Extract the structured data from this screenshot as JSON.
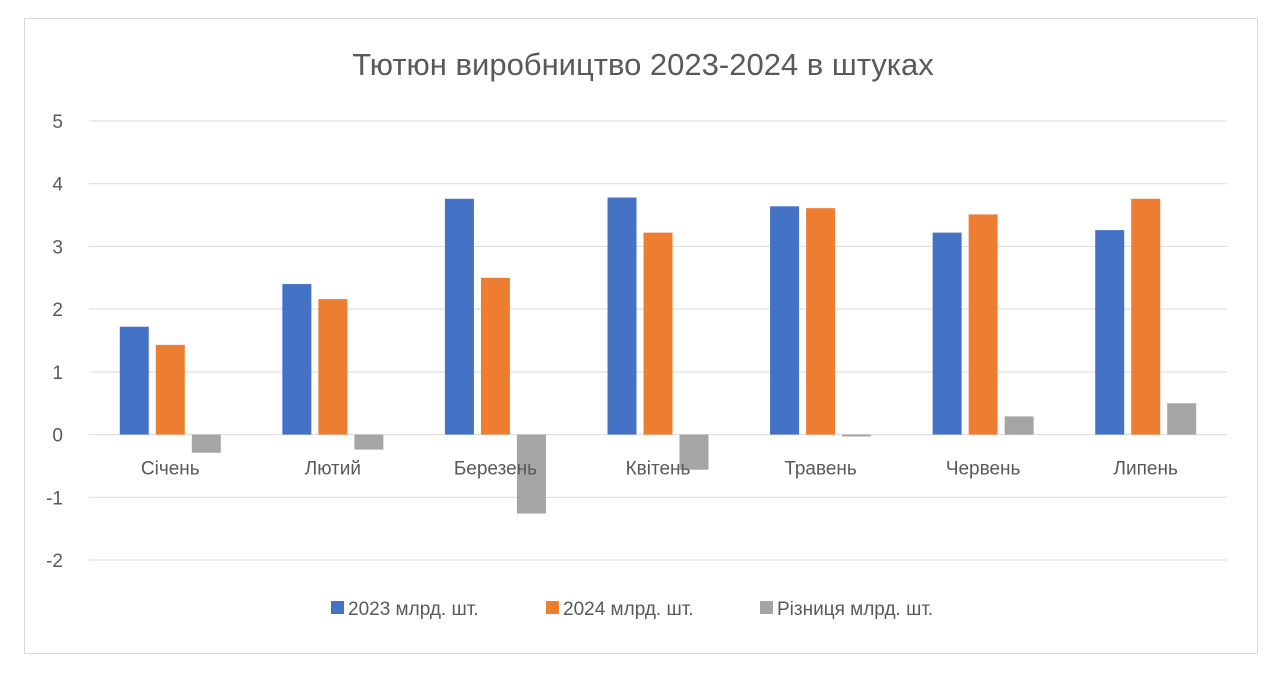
{
  "chart_data": {
    "type": "bar",
    "title": "Тютюн виробництво 2023-2024 в штуках",
    "xlabel": "",
    "ylabel": "",
    "categories": [
      "Січень",
      "Лютий",
      "Березень",
      "Квітень",
      "Травень",
      "Червень",
      "Липень"
    ],
    "series": [
      {
        "name": "2023 млрд. шт.",
        "color": "#4472c4",
        "values": [
          1.72,
          2.4,
          3.76,
          3.78,
          3.64,
          3.22,
          3.26
        ]
      },
      {
        "name": "2024 млрд. шт.",
        "color": "#ed7d31",
        "values": [
          1.43,
          2.16,
          2.5,
          3.22,
          3.61,
          3.51,
          3.76
        ]
      },
      {
        "name": "Різниця млрд. шт.",
        "color": "#a5a5a5",
        "values": [
          -0.29,
          -0.24,
          -1.26,
          -0.56,
          -0.03,
          0.29,
          0.5
        ]
      }
    ],
    "ylim": [
      -2,
      5
    ],
    "yticks": [
      5,
      4,
      3,
      2,
      1,
      0,
      -1,
      -2
    ],
    "grid": true,
    "legend": "bottom"
  }
}
